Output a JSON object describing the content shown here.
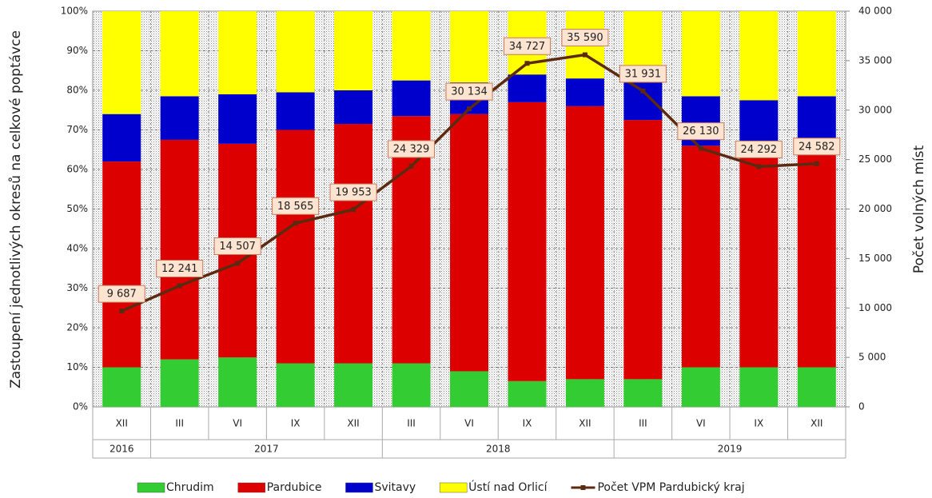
{
  "chart_data": {
    "type": "stacked_bar_line",
    "y_axis_label": "Zastoupení jednotlivých okresů na celkové poptávce",
    "y2_axis_label": "Počet volných míst",
    "category_groups": [
      {
        "name": "2016",
        "categories": [
          "XII"
        ]
      },
      {
        "name": "2017",
        "categories": [
          "III",
          "VI",
          "IX",
          "XII"
        ]
      },
      {
        "name": "2018",
        "categories": [
          "III",
          "VI",
          "IX",
          "XII"
        ]
      },
      {
        "name": "2019",
        "categories": [
          "III",
          "VI",
          "IX",
          "XII"
        ]
      }
    ],
    "series": [
      {
        "name": "Chrudim",
        "color": "#33cc33",
        "values": [
          10,
          12,
          12.5,
          11,
          11,
          11,
          9,
          6.5,
          7,
          7,
          10,
          10,
          10
        ]
      },
      {
        "name": "Pardubice",
        "color": "#dd0000",
        "values": [
          52,
          55.5,
          54,
          59,
          60.5,
          62.5,
          65,
          70.5,
          69,
          65.5,
          56,
          53,
          55
        ]
      },
      {
        "name": "Svitavy",
        "color": "#0000cc",
        "values": [
          12,
          11,
          12.5,
          9.5,
          8.5,
          9,
          8,
          7,
          7,
          9.5,
          12.5,
          14.5,
          13.5
        ]
      },
      {
        "name": "Ústí nad Orlicí",
        "color": "#ffff00",
        "values": [
          26,
          21.5,
          21,
          20.5,
          20,
          17.5,
          18,
          16,
          17,
          18,
          21.5,
          22.5,
          21.5
        ]
      },
      {
        "name": "Počet VPM Pardubický kraj",
        "color": "#5c2a10",
        "axis": "y2",
        "values": [
          9687,
          12241,
          14507,
          18565,
          19953,
          24329,
          30134,
          34727,
          35590,
          31931,
          26130,
          24292,
          24582
        ],
        "value_labels": [
          "9 687",
          "12 241",
          "14 507",
          "18 565",
          "19 953",
          "24 329",
          "30 134",
          "34 727",
          "35 590",
          "31 931",
          "26 130",
          "24 292",
          "24 582"
        ]
      }
    ],
    "ylim": [
      0,
      100
    ],
    "yticks": [
      {
        "value": 0,
        "label": "0%"
      },
      {
        "value": 10,
        "label": "10%"
      },
      {
        "value": 20,
        "label": "20%"
      },
      {
        "value": 30,
        "label": "30%"
      },
      {
        "value": 40,
        "label": "40%"
      },
      {
        "value": 50,
        "label": "50%"
      },
      {
        "value": 60,
        "label": "60%"
      },
      {
        "value": 70,
        "label": "70%"
      },
      {
        "value": 80,
        "label": "80%"
      },
      {
        "value": 90,
        "label": "90%"
      },
      {
        "value": 100,
        "label": "100%"
      }
    ],
    "y2lim": [
      0,
      40000
    ],
    "y2ticks": [
      0,
      {
        "value": 5000,
        "label": "5 000"
      },
      {
        "value": 10000,
        "label": "10 000"
      },
      {
        "value": 15000,
        "label": "15 000"
      },
      {
        "value": 20000,
        "label": "20 000"
      },
      {
        "value": 25000,
        "label": "25 000"
      },
      {
        "value": 30000,
        "label": "30 000"
      },
      {
        "value": 35000,
        "label": "35 000"
      },
      {
        "value": 40000,
        "label": "40 000"
      }
    ],
    "grid": true,
    "legend": "bottom"
  }
}
